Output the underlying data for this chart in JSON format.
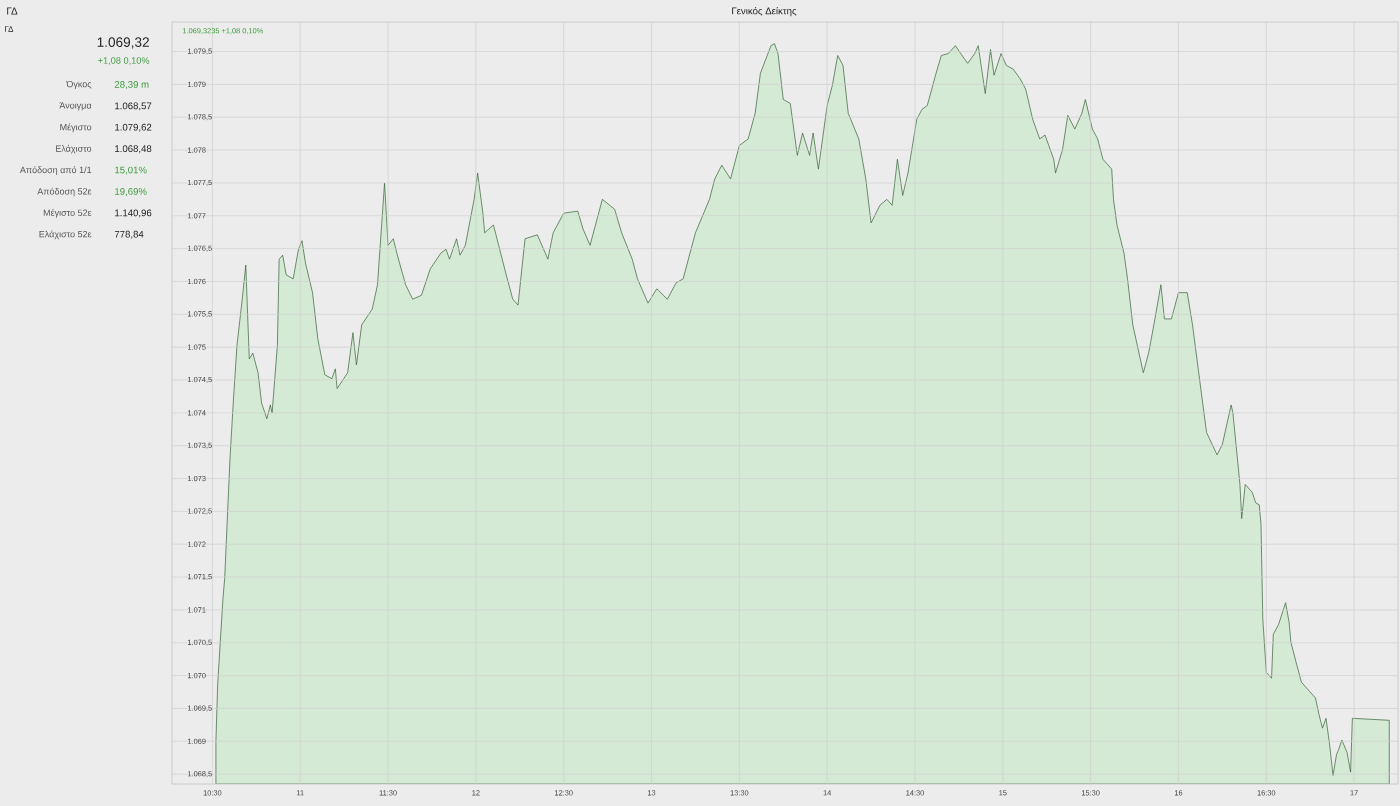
{
  "chart_data": [
    {
      "type": "other",
      "title": "1.069,32",
      "subtitle": "+1,08 0,10%",
      "annotations": [
        "ΓΔ",
        "ΓΔ",
        "Όγκος",
        "28,39 m",
        "Άνοιγμα",
        "1.068,57",
        "Μέγιστο",
        "1.079,62",
        "Ελάχιστο",
        "1.068,48",
        "Απόδοση από 1/1",
        "15,01%",
        "Απόδοση 52ε",
        "19,69%",
        "Μέγιστο 52ε",
        "1.140,96",
        "Ελάχιστο 52ε",
        "778,84"
      ]
    },
    {
      "type": "area",
      "title": "Γενικός Δείκτης",
      "annotations": [
        "1.069,3235 +1,08 0,10%"
      ],
      "color": "#d4ead4",
      "grid": true,
      "xlim": [
        10.27,
        17.25
      ],
      "ylim": [
        1068.35,
        1079.95
      ],
      "xticks": [
        {
          "value": 10.5,
          "label": "10:30"
        },
        {
          "value": 11,
          "label": "11"
        },
        {
          "value": 11.5,
          "label": "11:30"
        },
        {
          "value": 12,
          "label": "12"
        },
        {
          "value": 12.5,
          "label": "12:30"
        },
        {
          "value": 13,
          "label": "13"
        },
        {
          "value": 13.5,
          "label": "13:30"
        },
        {
          "value": 14,
          "label": "14"
        },
        {
          "value": 14.5,
          "label": "14:30"
        },
        {
          "value": 15,
          "label": "15"
        },
        {
          "value": 15.5,
          "label": "15:30"
        },
        {
          "value": 16,
          "label": "16"
        },
        {
          "value": 16.5,
          "label": "16:30"
        },
        {
          "value": 17,
          "label": "17"
        }
      ],
      "yticks": [
        {
          "value": 1068.5,
          "label": "1.068,5"
        },
        {
          "value": 1069,
          "label": "1.069"
        },
        {
          "value": 1069.5,
          "label": "1.069,5"
        },
        {
          "value": 1070,
          "label": "1.070"
        },
        {
          "value": 1070.5,
          "label": "1.070,5"
        },
        {
          "value": 1071,
          "label": "1.071"
        },
        {
          "value": 1071.5,
          "label": "1.071,5"
        },
        {
          "value": 1072,
          "label": "1.072"
        },
        {
          "value": 1072.5,
          "label": "1.072,5"
        },
        {
          "value": 1073,
          "label": "1.073"
        },
        {
          "value": 1073.5,
          "label": "1.073,5"
        },
        {
          "value": 1074,
          "label": "1.074"
        },
        {
          "value": 1074.5,
          "label": "1.074,5"
        },
        {
          "value": 1075,
          "label": "1.075"
        },
        {
          "value": 1075.5,
          "label": "1.075,5"
        },
        {
          "value": 1076,
          "label": "1.076"
        },
        {
          "value": 1076.5,
          "label": "1.076,5"
        },
        {
          "value": 1077,
          "label": "1.077"
        },
        {
          "value": 1077.5,
          "label": "1.077,5"
        },
        {
          "value": 1078,
          "label": "1.078"
        },
        {
          "value": 1078.5,
          "label": "1.078,5"
        },
        {
          "value": 1079,
          "label": "1.079"
        },
        {
          "value": 1079.5,
          "label": "1.079,5"
        }
      ],
      "x": [
        10.52,
        10.53,
        10.56,
        10.57,
        10.59,
        10.6,
        10.62,
        10.64,
        10.67,
        10.69,
        10.71,
        10.73,
        10.76,
        10.78,
        10.81,
        10.83,
        10.84,
        10.87,
        10.88,
        10.9,
        10.92,
        10.96,
        10.99,
        11.01,
        11.03,
        11.07,
        11.1,
        11.14,
        11.18,
        11.2,
        11.21,
        11.27,
        11.3,
        11.32,
        11.35,
        11.41,
        11.44,
        11.48,
        11.5,
        11.53,
        11.55,
        11.6,
        11.64,
        11.69,
        11.74,
        11.8,
        11.83,
        11.85,
        11.89,
        11.91,
        11.94,
        11.99,
        12.01,
        12.04,
        12.05,
        12.1,
        12.13,
        12.17,
        12.21,
        12.24,
        12.28,
        12.35,
        12.41,
        12.44,
        12.5,
        12.58,
        12.61,
        12.65,
        12.69,
        12.72,
        12.79,
        12.83,
        12.89,
        12.92,
        12.98,
        13.03,
        13.09,
        13.14,
        13.18,
        13.25,
        13.33,
        13.36,
        13.4,
        13.45,
        13.5,
        13.55,
        13.59,
        13.62,
        13.68,
        13.7,
        13.72,
        13.75,
        13.79,
        13.83,
        13.86,
        13.9,
        13.92,
        13.95,
        14.0,
        14.03,
        14.06,
        14.09,
        14.12,
        14.18,
        14.22,
        14.25,
        14.3,
        14.34,
        14.37,
        14.4,
        14.43,
        14.46,
        14.51,
        14.54,
        14.57,
        14.62,
        14.65,
        14.69,
        14.73,
        14.76,
        14.8,
        14.84,
        14.86,
        14.9,
        14.93,
        14.95,
        14.99,
        15.02,
        15.06,
        15.1,
        15.13,
        15.17,
        15.21,
        15.24,
        15.29,
        15.3,
        15.34,
        15.37,
        15.41,
        15.45,
        15.47,
        15.51,
        15.54,
        15.57,
        15.62,
        15.63,
        15.65,
        15.69,
        15.71,
        15.74,
        15.8,
        15.83,
        15.86,
        15.9,
        15.92,
        15.96,
        16.0,
        16.05,
        16.08,
        16.13,
        16.16,
        16.22,
        16.25,
        16.3,
        16.31,
        16.35,
        16.36,
        16.38,
        16.42,
        16.44,
        16.46,
        16.47,
        16.48,
        16.5,
        16.53,
        16.54,
        16.57,
        16.61,
        16.63,
        16.64,
        16.67,
        16.7,
        16.73,
        16.75,
        16.78,
        16.8,
        16.82,
        16.84,
        16.86,
        16.88,
        16.9,
        16.91,
        16.93,
        16.96,
        16.98,
        16.99,
        17.2
      ],
      "values": [
        1069.0,
        1069.87,
        1071.17,
        1071.48,
        1072.69,
        1073.3,
        1074.21,
        1075.03,
        1075.73,
        1076.25,
        1074.82,
        1074.91,
        1074.61,
        1074.15,
        1073.91,
        1074.12,
        1074.0,
        1075.03,
        1076.34,
        1076.4,
        1076.1,
        1076.04,
        1076.49,
        1076.62,
        1076.28,
        1075.83,
        1075.13,
        1074.58,
        1074.52,
        1074.67,
        1074.37,
        1074.61,
        1075.22,
        1074.73,
        1075.34,
        1075.58,
        1075.95,
        1077.5,
        1076.55,
        1076.65,
        1076.43,
        1075.95,
        1075.73,
        1075.79,
        1076.19,
        1076.43,
        1076.49,
        1076.34,
        1076.65,
        1076.4,
        1076.55,
        1077.25,
        1077.65,
        1077.04,
        1076.74,
        1076.86,
        1076.55,
        1076.13,
        1075.73,
        1075.64,
        1076.65,
        1076.71,
        1076.34,
        1076.74,
        1077.04,
        1077.07,
        1076.8,
        1076.55,
        1076.95,
        1077.25,
        1077.1,
        1076.74,
        1076.34,
        1076.04,
        1075.67,
        1075.89,
        1075.73,
        1075.98,
        1076.04,
        1076.74,
        1077.25,
        1077.56,
        1077.77,
        1077.56,
        1078.07,
        1078.17,
        1078.56,
        1079.17,
        1079.59,
        1079.62,
        1079.47,
        1078.77,
        1078.71,
        1077.92,
        1078.26,
        1077.92,
        1078.26,
        1077.71,
        1078.68,
        1078.99,
        1079.44,
        1079.29,
        1078.56,
        1078.17,
        1077.56,
        1076.89,
        1077.16,
        1077.25,
        1077.16,
        1077.86,
        1077.31,
        1077.65,
        1078.47,
        1078.62,
        1078.68,
        1079.17,
        1079.44,
        1079.47,
        1079.59,
        1079.47,
        1079.32,
        1079.47,
        1079.59,
        1078.86,
        1079.53,
        1079.14,
        1079.47,
        1079.29,
        1079.23,
        1079.08,
        1078.93,
        1078.47,
        1078.17,
        1078.23,
        1077.86,
        1077.65,
        1078.01,
        1078.53,
        1078.32,
        1078.56,
        1078.77,
        1078.32,
        1078.17,
        1077.86,
        1077.71,
        1077.25,
        1076.86,
        1076.43,
        1076.04,
        1075.34,
        1074.61,
        1074.91,
        1075.34,
        1075.95,
        1075.43,
        1075.43,
        1075.83,
        1075.83,
        1075.34,
        1074.31,
        1073.7,
        1073.36,
        1073.52,
        1074.12,
        1074.0,
        1072.91,
        1072.39,
        1072.91,
        1072.79,
        1072.63,
        1072.6,
        1072.3,
        1070.87,
        1070.05,
        1069.96,
        1070.63,
        1070.78,
        1071.11,
        1070.81,
        1070.51,
        1070.2,
        1069.9,
        1069.81,
        1069.75,
        1069.66,
        1069.41,
        1069.2,
        1069.35,
        1068.96,
        1068.48,
        1068.8,
        1068.86,
        1069.02,
        1068.83,
        1068.53,
        1069.35,
        1069.32
      ]
    }
  ]
}
